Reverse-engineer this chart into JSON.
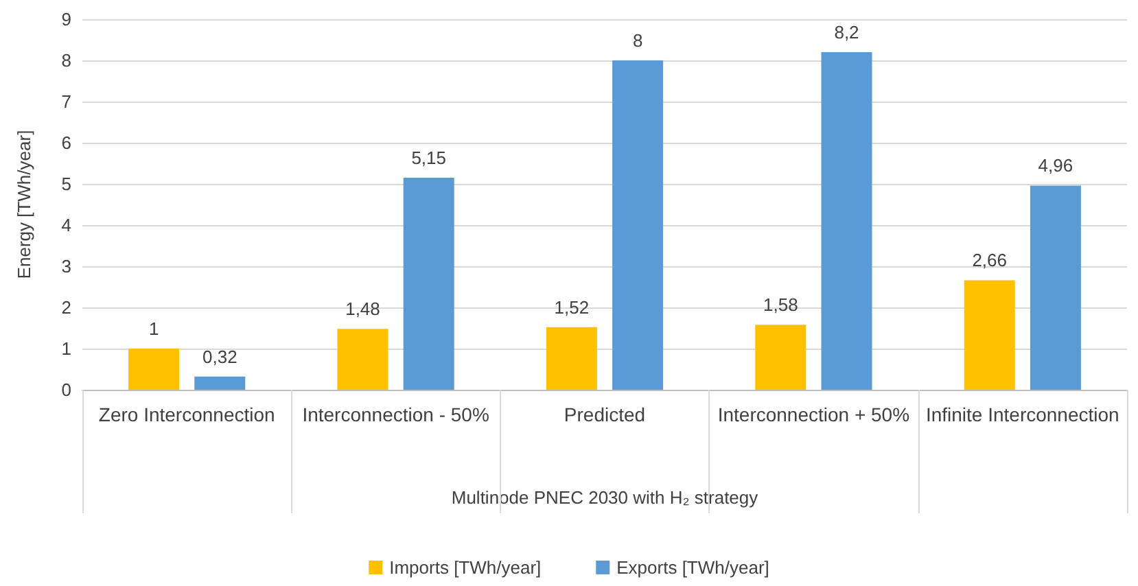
{
  "chart_data": {
    "type": "bar",
    "xlabel": "Multinode PNEC 2030 with H₂ strategy",
    "ylabel": "Energy [TWh/year]",
    "categories": [
      "Zero Interconnection",
      "Interconnection - 50%",
      "Predicted",
      "Interconnection + 50%",
      "Infinite Interconnection"
    ],
    "series": [
      {
        "name": "Imports [TWh/year]",
        "color": "#ffc000",
        "values": [
          1,
          1.48,
          1.52,
          1.58,
          2.66
        ],
        "value_labels": [
          "1",
          "1,48",
          "1,52",
          "1,58",
          "2,66"
        ]
      },
      {
        "name": "Exports [TWh/year]",
        "color": "#5b9bd5",
        "values": [
          0.32,
          5.15,
          8,
          8.2,
          4.96
        ],
        "value_labels": [
          "0,32",
          "5,15",
          "8",
          "8,2",
          "4,96"
        ]
      }
    ],
    "ylim": [
      0,
      9
    ],
    "yticks": [
      0,
      1,
      2,
      3,
      4,
      5,
      6,
      7,
      8,
      9
    ],
    "grid": "y",
    "legend": "bottom"
  }
}
